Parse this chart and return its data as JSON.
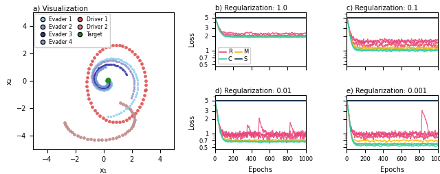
{
  "title_a": "a) Visualization",
  "title_b": "b) Regularization: 1.0",
  "title_c": "c) Regularization: 0.1",
  "title_d": "d) Regularization: 0.01",
  "title_e": "e) Regularization: 0.001",
  "xlabel_scatter": "x₁",
  "ylabel_scatter": "x₂",
  "xlabel_loss": "Epochs",
  "ylabel_loss": "Loss",
  "legend_entries": [
    "R",
    "M",
    "C",
    "S"
  ],
  "color_R": "#e8457a",
  "color_M": "#f5b800",
  "color_C": "#2ecda7",
  "color_S": "#1a3550",
  "evader1_color": "#87ceeb",
  "evader2_color": "#9090cc",
  "evader3_color": "#3535aa",
  "evader4_color": "#7799cc",
  "driver1_color": "#e05050",
  "driver2_color": "#c08888",
  "target_color": "#228B22",
  "scatter_xlim": [
    -5,
    5
  ],
  "scatter_ylim": [
    -5,
    5
  ],
  "scatter_xticks": [
    -4,
    -2,
    0,
    2,
    4
  ],
  "scatter_yticks": [
    -4,
    -2,
    0,
    2,
    4
  ],
  "loss_ylim_min": 0.45,
  "loss_ylim_max": 6.5,
  "loss_yticks": [
    0.5,
    0.7,
    1,
    2,
    3,
    5
  ],
  "loss_ytick_labels": [
    "0.5",
    "0.7",
    "1",
    "2",
    "3",
    "5"
  ],
  "loss_xlim": [
    0,
    1000
  ],
  "loss_xticks": [
    0,
    200,
    400,
    600,
    800,
    1000
  ],
  "n_epochs": 1000
}
